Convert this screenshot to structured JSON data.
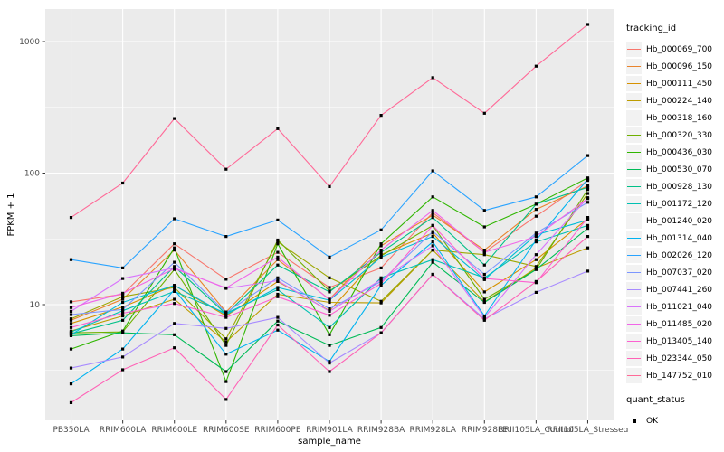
{
  "chart_data": {
    "type": "line",
    "title": "",
    "xlabel": "sample_name",
    "ylabel": "FPKM + 1",
    "y_scale": "log10",
    "grid": "on",
    "legend_position": "right",
    "y_ticks": [
      {
        "value": 10,
        "label": "10"
      },
      {
        "value": 100,
        "label": "100"
      },
      {
        "value": 1000,
        "label": "1000"
      }
    ],
    "ylim": [
      1.4,
      1800
    ],
    "categories": [
      "PB350LA",
      "RRIM600LA",
      "RRIM600LE",
      "RRIM600SE",
      "RRIM600PE",
      "RRIM901LA",
      "RRIM928BA",
      "RRIM928LA",
      "RRIM928LE",
      "RRII105LA_Control",
      "RRII105LA_Stressed"
    ],
    "series": [
      {
        "name": "Hb_000069_700",
        "color": "#F8766D",
        "values": [
          10.5,
          12,
          29,
          15.6,
          25,
          13.5,
          19,
          50,
          25,
          47,
          88
        ]
      },
      {
        "name": "Hb_000096_150",
        "color": "#E9842C",
        "values": [
          7.6,
          11,
          26,
          8.8,
          22,
          11,
          28,
          48,
          26,
          53,
          80
        ]
      },
      {
        "name": "Hb_000111_450",
        "color": "#D69100",
        "values": [
          7.2,
          9.6,
          14,
          8.2,
          15,
          9,
          24,
          35,
          12.5,
          22,
          45
        ]
      },
      {
        "name": "Hb_000224_140",
        "color": "#BD9C00",
        "values": [
          6.3,
          8.2,
          11,
          5.2,
          12,
          10.4,
          10.3,
          26,
          10.5,
          19,
          27
        ]
      },
      {
        "name": "Hb_000318_160",
        "color": "#9CA700",
        "values": [
          7.8,
          11.5,
          13.5,
          5.5,
          30,
          16,
          10.6,
          26,
          24,
          19.5,
          70
        ]
      },
      {
        "name": "Hb_000320_330",
        "color": "#6FB000",
        "values": [
          6.1,
          6.2,
          18.5,
          4.9,
          31,
          12.7,
          23.5,
          40,
          11,
          18.5,
          75
        ]
      },
      {
        "name": "Hb_000436_030",
        "color": "#2FB600",
        "values": [
          4.6,
          6.3,
          27,
          2.6,
          29,
          5.9,
          29,
          66,
          39,
          58,
          92
        ]
      },
      {
        "name": "Hb_000530_070",
        "color": "#00BB57",
        "values": [
          5.8,
          6.1,
          5.9,
          3.1,
          7.5,
          4.9,
          6.7,
          21,
          10.4,
          18.5,
          38
        ]
      },
      {
        "name": "Hb_000928_130",
        "color": "#00C087",
        "values": [
          6.0,
          7.6,
          19.5,
          8.5,
          20,
          12.5,
          25,
          46,
          20,
          58,
          78
        ]
      },
      {
        "name": "Hb_001172_120",
        "color": "#00C0B2",
        "values": [
          6.2,
          9.0,
          12.6,
          8.6,
          13,
          6.7,
          16,
          22,
          16,
          30,
          40
        ]
      },
      {
        "name": "Hb_001240_020",
        "color": "#00BCD6",
        "values": [
          5.9,
          10.4,
          14,
          8.4,
          13.5,
          10.8,
          23,
          33,
          15.5,
          34,
          44
        ]
      },
      {
        "name": "Hb_001314_040",
        "color": "#00B3F0",
        "values": [
          2.5,
          4.6,
          13,
          4.2,
          6.4,
          3.7,
          14,
          30,
          8.2,
          31,
          90
        ]
      },
      {
        "name": "Hb_002026_120",
        "color": "#29A3FF",
        "values": [
          22,
          19,
          45,
          33,
          44,
          23,
          37,
          104,
          52,
          66,
          136
        ]
      },
      {
        "name": "Hb_007037_020",
        "color": "#7C96FF",
        "values": [
          8.4,
          9.2,
          21,
          8.7,
          16,
          9.3,
          15,
          36,
          17,
          35,
          60
        ]
      },
      {
        "name": "Hb_007441_260",
        "color": "#A88BFF",
        "values": [
          3.3,
          4.0,
          7.2,
          6.6,
          8.0,
          3.6,
          6.1,
          17,
          7.8,
          12.4,
          18
        ]
      },
      {
        "name": "Hb_011021_040",
        "color": "#D973FC",
        "values": [
          8.9,
          15.8,
          19,
          13.3,
          15.2,
          8.9,
          15.5,
          28,
          8.0,
          24,
          65
        ]
      },
      {
        "name": "Hb_011485_020",
        "color": "#F166E8",
        "values": [
          9.5,
          12.2,
          18.8,
          13.4,
          23,
          10.9,
          26,
          52,
          25,
          33,
          64
        ]
      },
      {
        "name": "Hb_013405_140",
        "color": "#FD61D1",
        "values": [
          6.7,
          8.6,
          10.2,
          8.0,
          11.5,
          8.3,
          14.5,
          40,
          15.8,
          14.7,
          46
        ]
      },
      {
        "name": "Hb_023344_050",
        "color": "#FF62B6",
        "values": [
          1.8,
          3.2,
          4.7,
          1.9,
          7,
          3.1,
          6.1,
          17,
          7.6,
          15,
          33
        ]
      },
      {
        "name": "Hb_147752_010",
        "color": "#FF6A98",
        "values": [
          46,
          84,
          260,
          107,
          218,
          79,
          275,
          532,
          285,
          650,
          1350
        ]
      }
    ],
    "marker": {
      "shape": "square",
      "color": "#000000",
      "size": 3.2
    }
  },
  "legend": {
    "title": "tracking_id"
  },
  "quant_legend": {
    "title": "quant_status",
    "items": [
      "OK"
    ]
  },
  "style": {
    "panel_bg": "#EBEBEB",
    "grid_color": "#FFFFFF",
    "tick_color": "#333333",
    "tick_label_color": "#4D4D4D",
    "axis_title_color": "#000000",
    "key_bg": "#F2F2F2"
  }
}
